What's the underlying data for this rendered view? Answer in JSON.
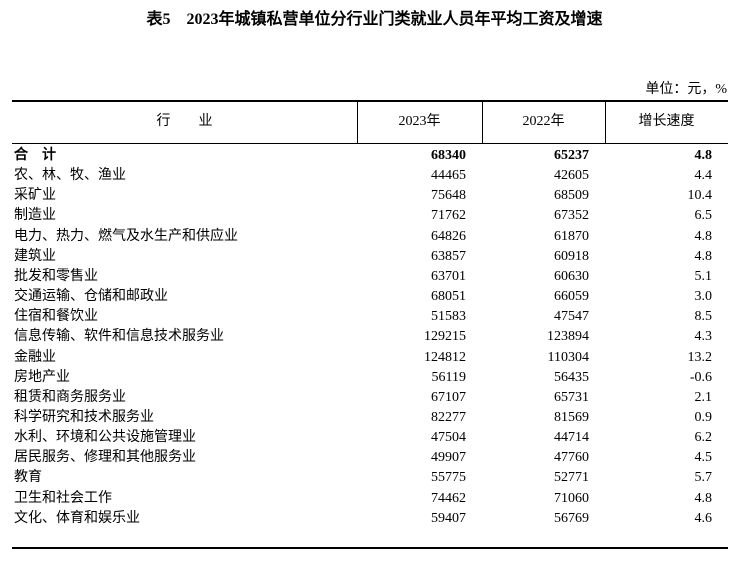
{
  "title": "表5　2023年城镇私营单位分行业门类就业人员年平均工资及增速",
  "unit": "单位：元，%",
  "table": {
    "header": [
      "行　　业",
      "2023年",
      "2022年",
      "增长速度"
    ],
    "rows": [
      [
        "合　计",
        "68340",
        "65237",
        "4.8"
      ],
      [
        "农、林、牧、渔业",
        "44465",
        "42605",
        "4.4"
      ],
      [
        "采矿业",
        "75648",
        "68509",
        "10.4"
      ],
      [
        "制造业",
        "71762",
        "67352",
        "6.5"
      ],
      [
        "电力、热力、燃气及水生产和供应业",
        "64826",
        "61870",
        "4.8"
      ],
      [
        "建筑业",
        "63857",
        "60918",
        "4.8"
      ],
      [
        "批发和零售业",
        "63701",
        "60630",
        "5.1"
      ],
      [
        "交通运输、仓储和邮政业",
        "68051",
        "66059",
        "3.0"
      ],
      [
        "住宿和餐饮业",
        "51583",
        "47547",
        "8.5"
      ],
      [
        "信息传输、软件和信息技术服务业",
        "129215",
        "123894",
        "4.3"
      ],
      [
        "金融业",
        "124812",
        "110304",
        "13.2"
      ],
      [
        "房地产业",
        "56119",
        "56435",
        "-0.6"
      ],
      [
        "租赁和商务服务业",
        "67107",
        "65731",
        "2.1"
      ],
      [
        "科学研究和技术服务业",
        "82277",
        "81569",
        "0.9"
      ],
      [
        "水利、环境和公共设施管理业",
        "47504",
        "44714",
        "6.2"
      ],
      [
        "居民服务、修理和其他服务业",
        "49907",
        "47760",
        "4.5"
      ],
      [
        "教育",
        "55775",
        "52771",
        "5.7"
      ],
      [
        "卫生和社会工作",
        "74462",
        "71060",
        "4.8"
      ],
      [
        "文化、体育和娱乐业",
        "59407",
        "56769",
        "4.6"
      ]
    ]
  }
}
